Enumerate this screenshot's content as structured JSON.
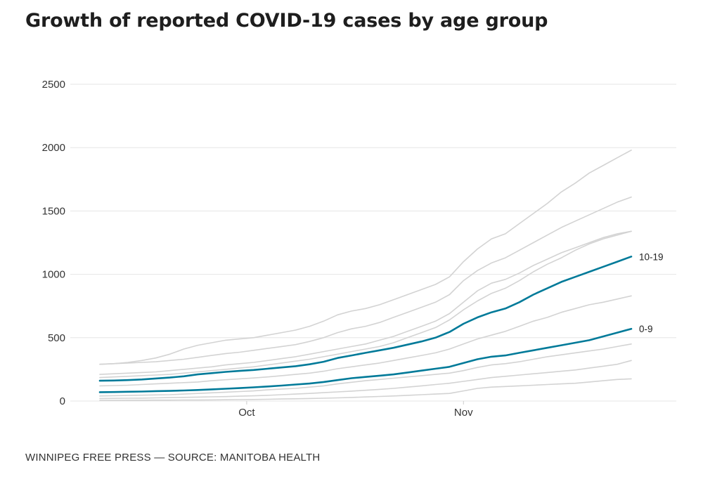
{
  "title": "Growth of reported COVID-19 cases by age group",
  "source": "WINNIPEG FREE PRESS — SOURCE: MANITOBA HEALTH",
  "colors": {
    "highlight": "#007a99",
    "background_series": "#d3d3d3",
    "grid": "#e6e6e6",
    "text": "#333333"
  },
  "chart_data": {
    "type": "line",
    "title": "Growth of reported COVID-19 cases by age group",
    "xlabel": "",
    "ylabel": "",
    "x": [
      "Sep 10",
      "Sep 12",
      "Sep 14",
      "Sep 16",
      "Sep 18",
      "Sep 20",
      "Sep 22",
      "Sep 24",
      "Sep 26",
      "Sep 28",
      "Sep 30",
      "Oct 2",
      "Oct 4",
      "Oct 6",
      "Oct 8",
      "Oct 10",
      "Oct 12",
      "Oct 14",
      "Oct 16",
      "Oct 18",
      "Oct 20",
      "Oct 22",
      "Oct 24",
      "Oct 26",
      "Oct 28",
      "Oct 30",
      "Nov 1",
      "Nov 3",
      "Nov 5",
      "Nov 7",
      "Nov 9",
      "Nov 11",
      "Nov 13",
      "Nov 15",
      "Nov 17",
      "Nov 19",
      "Nov 21",
      "Nov 23",
      "Nov 25"
    ],
    "x_ticks": [
      {
        "date": "Oct 1",
        "label": "Oct"
      },
      {
        "date": "Nov 1",
        "label": "Nov"
      }
    ],
    "ylim": [
      0,
      2500
    ],
    "y_ticks": [
      0,
      500,
      1000,
      1500,
      2000,
      2500
    ],
    "grid": true,
    "series": [
      {
        "name": "",
        "highlight": false,
        "values": [
          290,
          295,
          305,
          320,
          340,
          370,
          410,
          440,
          460,
          480,
          490,
          500,
          520,
          540,
          560,
          590,
          630,
          680,
          710,
          730,
          760,
          800,
          840,
          880,
          920,
          980,
          1100,
          1200,
          1280,
          1320,
          1400,
          1480,
          1560,
          1650,
          1720,
          1800,
          1860,
          1920,
          1980
        ]
      },
      {
        "name": "",
        "highlight": false,
        "values": [
          290,
          295,
          300,
          305,
          310,
          320,
          330,
          345,
          360,
          375,
          385,
          400,
          415,
          430,
          445,
          470,
          500,
          540,
          570,
          590,
          620,
          660,
          700,
          740,
          780,
          840,
          950,
          1030,
          1090,
          1130,
          1190,
          1250,
          1310,
          1370,
          1420,
          1470,
          1520,
          1570,
          1610
        ]
      },
      {
        "name": "",
        "highlight": false,
        "values": [
          210,
          215,
          220,
          225,
          230,
          240,
          250,
          260,
          270,
          285,
          295,
          305,
          320,
          335,
          350,
          370,
          390,
          410,
          430,
          450,
          480,
          510,
          550,
          590,
          630,
          690,
          780,
          870,
          930,
          960,
          1010,
          1070,
          1120,
          1170,
          1210,
          1250,
          1290,
          1320,
          1340
        ]
      },
      {
        "name": "",
        "highlight": false,
        "values": [
          185,
          190,
          195,
          200,
          205,
          210,
          220,
          230,
          240,
          250,
          260,
          270,
          285,
          300,
          315,
          330,
          350,
          370,
          390,
          410,
          430,
          460,
          500,
          540,
          580,
          640,
          720,
          790,
          850,
          890,
          950,
          1020,
          1080,
          1130,
          1190,
          1240,
          1280,
          1310,
          1340
        ]
      },
      {
        "name": "10-19",
        "highlight": true,
        "values": [
          160,
          162,
          165,
          170,
          178,
          185,
          195,
          210,
          220,
          230,
          238,
          245,
          255,
          265,
          275,
          290,
          310,
          340,
          360,
          380,
          400,
          420,
          445,
          470,
          500,
          545,
          610,
          660,
          700,
          730,
          780,
          840,
          890,
          940,
          980,
          1020,
          1060,
          1100,
          1140
        ]
      },
      {
        "name": "",
        "highlight": false,
        "values": [
          120,
          122,
          125,
          130,
          135,
          140,
          145,
          150,
          160,
          168,
          175,
          182,
          190,
          200,
          210,
          220,
          235,
          255,
          270,
          285,
          300,
          320,
          340,
          360,
          380,
          410,
          450,
          490,
          520,
          550,
          590,
          630,
          660,
          700,
          730,
          760,
          780,
          805,
          830
        ]
      },
      {
        "name": "0-9",
        "highlight": true,
        "values": [
          70,
          71,
          73,
          75,
          78,
          80,
          83,
          87,
          92,
          97,
          102,
          108,
          115,
          122,
          130,
          138,
          150,
          165,
          180,
          190,
          200,
          210,
          225,
          240,
          255,
          270,
          300,
          330,
          350,
          360,
          380,
          400,
          420,
          440,
          460,
          480,
          510,
          540,
          570
        ]
      },
      {
        "name": "",
        "highlight": false,
        "values": [
          40,
          42,
          44,
          46,
          48,
          50,
          55,
          60,
          65,
          70,
          75,
          80,
          88,
          95,
          100,
          110,
          120,
          135,
          148,
          160,
          170,
          180,
          190,
          200,
          210,
          220,
          240,
          265,
          285,
          295,
          310,
          330,
          350,
          365,
          380,
          395,
          410,
          430,
          450
        ]
      },
      {
        "name": "",
        "highlight": false,
        "values": [
          20,
          21,
          22,
          23,
          25,
          27,
          29,
          31,
          33,
          35,
          38,
          41,
          45,
          50,
          55,
          60,
          66,
          72,
          78,
          85,
          92,
          100,
          110,
          120,
          130,
          140,
          155,
          170,
          185,
          195,
          205,
          215,
          225,
          235,
          245,
          260,
          275,
          290,
          320
        ]
      },
      {
        "name": "",
        "highlight": false,
        "values": [
          5,
          5,
          6,
          6,
          7,
          7,
          8,
          8,
          9,
          10,
          11,
          12,
          14,
          16,
          18,
          20,
          22,
          25,
          28,
          32,
          36,
          40,
          45,
          50,
          55,
          60,
          80,
          100,
          110,
          115,
          120,
          125,
          130,
          135,
          140,
          150,
          160,
          170,
          175
        ]
      }
    ]
  }
}
